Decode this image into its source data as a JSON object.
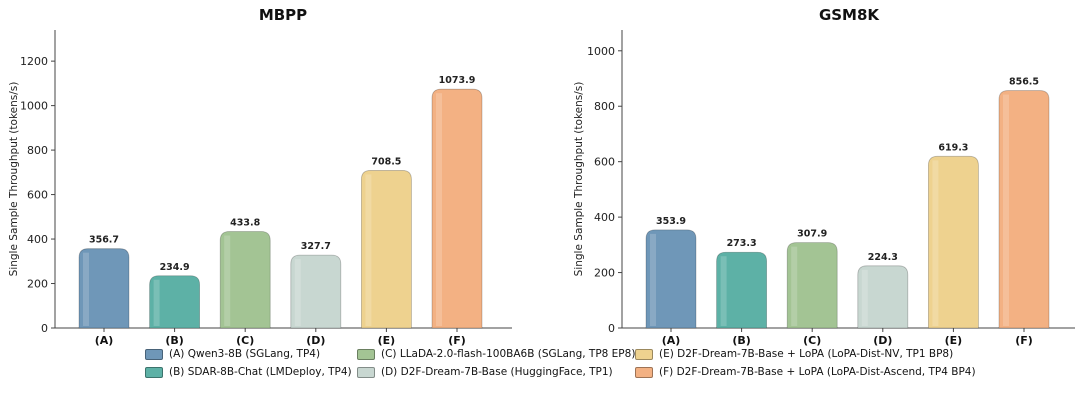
{
  "colors": {
    "A": "#6f97b8",
    "B": "#5db1a6",
    "C": "#a3c494",
    "D": "#c8d7d1",
    "E": "#eed28f",
    "F": "#f3b183"
  },
  "chart_data": [
    {
      "type": "bar",
      "title": "MBPP",
      "ylabel": "Single Sample Throughput (tokens/s)",
      "xlabel": "",
      "categories": [
        "(A)",
        "(B)",
        "(C)",
        "(D)",
        "(E)",
        "(F)"
      ],
      "values": [
        356.7,
        234.9,
        433.8,
        327.7,
        708.5,
        1073.9
      ],
      "value_labels": [
        "356.7",
        "234.9",
        "433.8",
        "327.7",
        "708.5",
        "1073.9"
      ],
      "ylim": [
        0,
        1340
      ],
      "yticks": [
        0,
        200,
        400,
        600,
        800,
        1000,
        1200
      ],
      "grid": false
    },
    {
      "type": "bar",
      "title": "GSM8K",
      "ylabel": "Single Sample Throughput (tokens/s)",
      "xlabel": "",
      "categories": [
        "(A)",
        "(B)",
        "(C)",
        "(D)",
        "(E)",
        "(F)"
      ],
      "values": [
        353.9,
        273.3,
        307.9,
        224.3,
        619.3,
        856.5
      ],
      "value_labels": [
        "353.9",
        "273.3",
        "307.9",
        "224.3",
        "619.3",
        "856.5"
      ],
      "ylim": [
        0,
        1075
      ],
      "yticks": [
        0,
        200,
        400,
        600,
        800,
        1000
      ],
      "grid": false
    }
  ],
  "legend": {
    "placement": "bottom-center",
    "entries": [
      {
        "key": "A",
        "label": "(A) Qwen3-8B (SGLang, TP4)"
      },
      {
        "key": "C",
        "label": "(C) LLaDA-2.0-flash-100BA6B (SGLang, TP8 EP8)"
      },
      {
        "key": "E",
        "label": "(E) D2F-Dream-7B-Base + LoPA (LoPA-Dist-NV, TP1 BP8)"
      },
      {
        "key": "B",
        "label": "(B) SDAR-8B-Chat (LMDeploy, TP4)"
      },
      {
        "key": "D",
        "label": "(D) D2F-Dream-7B-Base (HuggingFace, TP1)"
      },
      {
        "key": "F",
        "label": "(F) D2F-Dream-7B-Base + LoPA (LoPA-Dist-Ascend, TP4 BP4)"
      }
    ]
  }
}
